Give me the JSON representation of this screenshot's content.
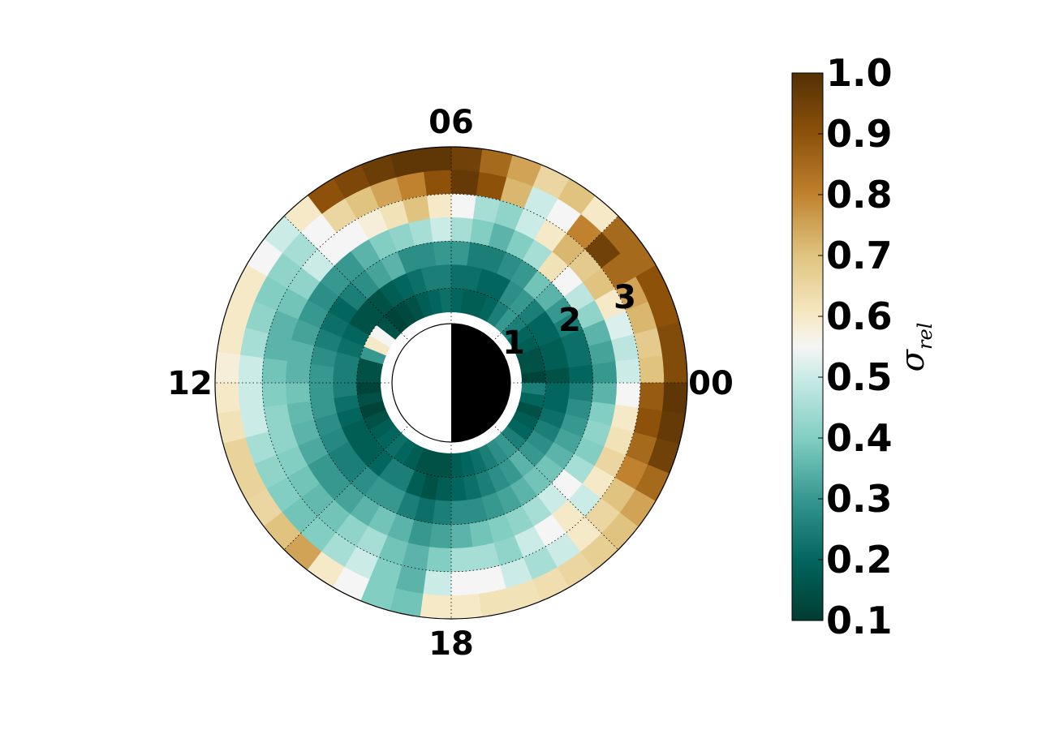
{
  "chart_data": {
    "type": "heatmap",
    "subtype": "polar",
    "angular_tick_labels": [
      "06",
      "12",
      "18",
      "00"
    ],
    "radial_tick_labels": [
      "1",
      "2",
      "3"
    ],
    "colorbar": {
      "label": "σ_rel",
      "range": [
        0.1,
        1.0
      ],
      "tick_labels": [
        "0.1",
        "0.2",
        "0.3",
        "0.4",
        "0.5",
        "0.6",
        "0.7",
        "0.8",
        "0.9",
        "1.0"
      ],
      "colormap": "BrBG_r"
    },
    "grid": true,
    "center_disk": "half black (00 side), half white (12 side)",
    "rings": [
      {
        "r_inner": 2.25,
        "r_outer": 2.5,
        "values": [
          0.92,
          0.92,
          0.9,
          0.9,
          0.85,
          0.85,
          0.6,
          0.7,
          0.65,
          0.75,
          0.85,
          0.95,
          0.98,
          0.98,
          0.96,
          0.93,
          0.9,
          0.6,
          0.5,
          0.55,
          0.6,
          0.6,
          0.6,
          0.58,
          0.6,
          0.62,
          0.66,
          0.66,
          0.65,
          0.7,
          0.75,
          0.6,
          0.55,
          0.4,
          0.38,
          0.6,
          0.6,
          0.62,
          0.62,
          0.63,
          0.65,
          0.67,
          0.7,
          0.75,
          0.85,
          0.95,
          0.97,
          0.98
        ]
      },
      {
        "r_inner": 2.0,
        "r_outer": 2.25,
        "values": [
          0.7,
          0.68,
          0.72,
          0.75,
          0.85,
          0.95,
          0.8,
          0.55,
          0.5,
          0.72,
          0.9,
          0.97,
          0.9,
          0.8,
          0.75,
          0.7,
          0.65,
          0.55,
          0.45,
          0.42,
          0.4,
          0.42,
          0.45,
          0.5,
          0.5,
          0.5,
          0.45,
          0.42,
          0.4,
          0.38,
          0.4,
          0.45,
          0.5,
          0.4,
          0.35,
          0.5,
          0.55,
          0.55,
          0.5,
          0.45,
          0.5,
          0.6,
          0.65,
          0.7,
          0.8,
          0.85,
          0.9,
          0.88
        ]
      },
      {
        "r_inner": 1.75,
        "r_outer": 2.0,
        "values": [
          0.5,
          0.48,
          0.52,
          0.6,
          0.7,
          0.68,
          0.72,
          0.6,
          0.5,
          0.42,
          0.45,
          0.55,
          0.6,
          0.7,
          0.62,
          0.58,
          0.55,
          0.55,
          0.5,
          0.42,
          0.38,
          0.35,
          0.35,
          0.38,
          0.4,
          0.42,
          0.42,
          0.4,
          0.38,
          0.36,
          0.38,
          0.42,
          0.45,
          0.38,
          0.35,
          0.4,
          0.45,
          0.45,
          0.42,
          0.5,
          0.55,
          0.6,
          0.5,
          0.6,
          0.65,
          0.62,
          0.6,
          0.55
        ]
      },
      {
        "r_inner": 1.5,
        "r_outer": 1.75,
        "values": [
          0.3,
          0.32,
          0.35,
          0.42,
          0.48,
          0.55,
          0.62,
          0.45,
          0.4,
          0.35,
          0.4,
          0.45,
          0.5,
          0.45,
          0.42,
          0.4,
          0.35,
          0.3,
          0.3,
          0.28,
          0.3,
          0.32,
          0.35,
          0.35,
          0.38,
          0.36,
          0.35,
          0.33,
          0.3,
          0.3,
          0.32,
          0.35,
          0.38,
          0.35,
          0.3,
          0.32,
          0.35,
          0.38,
          0.4,
          0.42,
          0.45,
          0.5,
          0.55,
          0.45,
          0.4,
          0.42,
          0.4,
          0.35
        ]
      },
      {
        "r_inner": 1.25,
        "r_outer": 1.5,
        "values": [
          0.2,
          0.22,
          0.22,
          0.25,
          0.3,
          0.35,
          0.38,
          0.3,
          0.28,
          0.25,
          0.25,
          0.3,
          0.3,
          0.28,
          0.28,
          0.35,
          0.32,
          0.28,
          0.25,
          0.2,
          0.22,
          0.25,
          0.28,
          0.3,
          0.3,
          0.3,
          0.28,
          0.27,
          0.25,
          0.25,
          0.28,
          0.3,
          0.3,
          0.25,
          0.22,
          0.25,
          0.28,
          0.28,
          0.3,
          0.32,
          0.35,
          0.38,
          0.38,
          0.35,
          0.32,
          0.3,
          0.28,
          0.25
        ]
      },
      {
        "r_inner": 1.0,
        "r_outer": 1.25,
        "values": [
          0.15,
          0.18,
          0.18,
          0.2,
          0.2,
          0.25,
          0.3,
          0.28,
          0.2,
          0.2,
          0.22,
          0.22,
          0.25,
          0.25,
          0.22,
          0.2,
          0.18,
          0.15,
          0.15,
          0.15,
          0.2,
          0.22,
          0.25,
          0.25,
          0.25,
          0.22,
          0.2,
          0.18,
          0.18,
          0.18,
          0.2,
          0.25,
          0.25,
          0.18,
          0.15,
          0.18,
          0.2,
          0.22,
          0.25,
          0.28,
          0.3,
          0.35,
          0.3,
          0.28,
          0.25,
          0.22,
          0.2,
          0.2
        ]
      },
      {
        "r_inner": 0.75,
        "r_outer": 1.0,
        "values": [
          0.12,
          0.15,
          0.15,
          0.18,
          0.2,
          0.25,
          0.3,
          0.25,
          0.2,
          0.18,
          0.18,
          0.2,
          0.22,
          0.2,
          0.18,
          0.15,
          0.13,
          0.12,
          0.15,
          0.55,
          0.6,
          0.3,
          0.15,
          0.15,
          0.12,
          0.15,
          0.12,
          0.15,
          0.18,
          0.2,
          0.22,
          0.2,
          0.18,
          0.15,
          0.15,
          0.15,
          0.18,
          0.2,
          0.22,
          0.25,
          0.28,
          0.3,
          0.25,
          0.2,
          0.18,
          0.15,
          0.2,
          0.25
        ]
      }
    ],
    "r_max": 2.5,
    "sector_count": 48
  }
}
